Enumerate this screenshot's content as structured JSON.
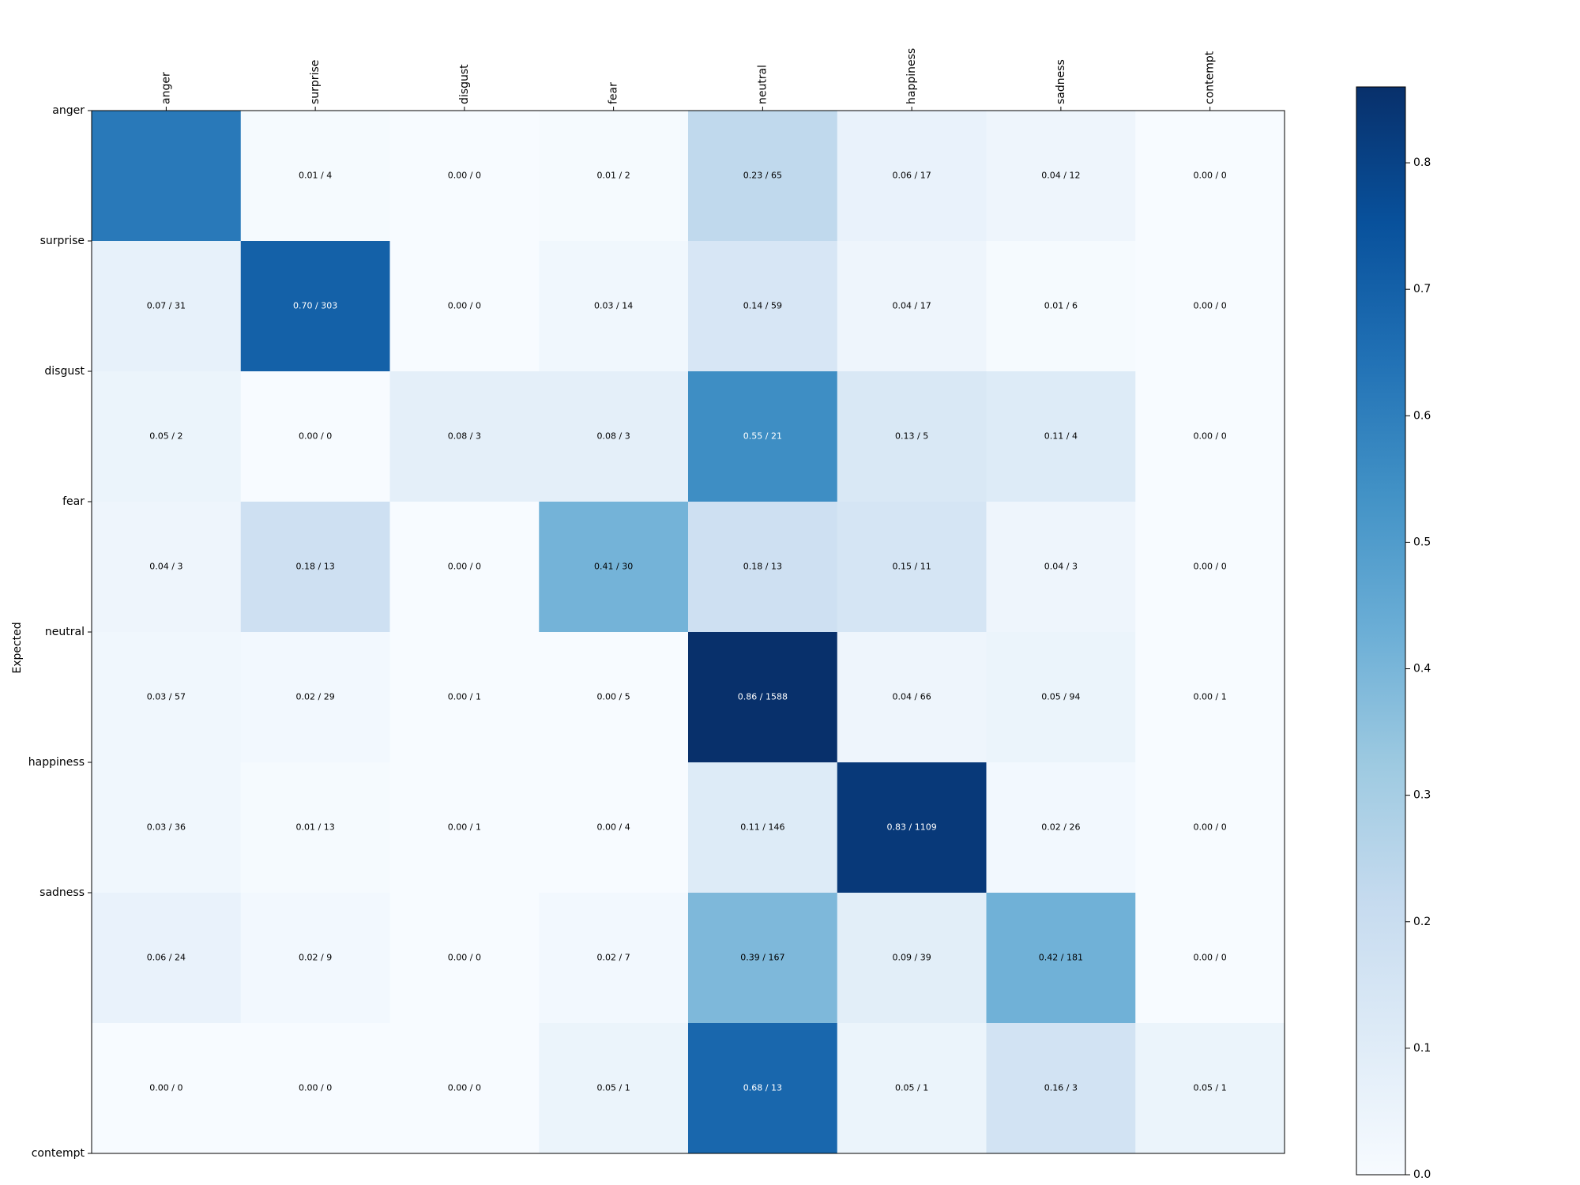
{
  "chart_data": {
    "type": "heatmap",
    "title": "",
    "xlabel": "",
    "ylabel": "Expected",
    "categories_x": [
      "anger",
      "surprise",
      "disgust",
      "fear",
      "neutral",
      "happiness",
      "sadness",
      "contempt"
    ],
    "categories_y": [
      "anger",
      "surprise",
      "disgust",
      "fear",
      "neutral",
      "happiness",
      "sadness",
      "contempt"
    ],
    "cells": [
      [
        "",
        "0.01 / 4",
        "0.00 / 0",
        "0.01 / 2",
        "0.23 / 65",
        "0.06 / 17",
        "0.04 / 12",
        "0.00 / 0"
      ],
      [
        "0.07 / 31",
        "0.70 / 303",
        "0.00 / 0",
        "0.03 / 14",
        "0.14 / 59",
        "0.04 / 17",
        "0.01 / 6",
        "0.00 / 0"
      ],
      [
        "0.05 / 2",
        "0.00 / 0",
        "0.08 / 3",
        "0.08 / 3",
        "0.55 / 21",
        "0.13 / 5",
        "0.11 / 4",
        "0.00 / 0"
      ],
      [
        "0.04 / 3",
        "0.18 / 13",
        "0.00 / 0",
        "0.41 / 30",
        "0.18 / 13",
        "0.15 / 11",
        "0.04 / 3",
        "0.00 / 0"
      ],
      [
        "0.03 / 57",
        "0.02 / 29",
        "0.00 / 1",
        "0.00 / 5",
        "0.86 / 1588",
        "0.04 / 66",
        "0.05 / 94",
        "0.00 / 1"
      ],
      [
        "0.03 / 36",
        "0.01 / 13",
        "0.00 / 1",
        "0.00 / 4",
        "0.11 / 146",
        "0.83 / 1109",
        "0.02 / 26",
        "0.00 / 0"
      ],
      [
        "0.06 / 24",
        "0.02 / 9",
        "0.00 / 0",
        "0.02 / 7",
        "0.39 / 167",
        "0.09 / 39",
        "0.42 / 181",
        "0.00 / 0"
      ],
      [
        "0.00 / 0",
        "0.00 / 0",
        "0.00 / 0",
        "0.05 / 1",
        "0.68 / 13",
        "0.05 / 1",
        "0.16 / 3",
        "0.05 / 1"
      ]
    ],
    "values": [
      [
        0.62,
        0.01,
        0.0,
        0.01,
        0.23,
        0.06,
        0.04,
        0.0
      ],
      [
        0.07,
        0.7,
        0.0,
        0.03,
        0.14,
        0.04,
        0.01,
        0.0
      ],
      [
        0.05,
        0.0,
        0.08,
        0.08,
        0.55,
        0.13,
        0.11,
        0.0
      ],
      [
        0.04,
        0.18,
        0.0,
        0.41,
        0.18,
        0.15,
        0.04,
        0.0
      ],
      [
        0.03,
        0.02,
        0.0,
        0.0,
        0.86,
        0.04,
        0.05,
        0.0
      ],
      [
        0.03,
        0.01,
        0.0,
        0.0,
        0.11,
        0.83,
        0.02,
        0.0
      ],
      [
        0.06,
        0.02,
        0.0,
        0.02,
        0.39,
        0.09,
        0.42,
        0.0
      ],
      [
        0.0,
        0.0,
        0.0,
        0.05,
        0.68,
        0.05,
        0.16,
        0.05
      ]
    ],
    "colormap": "Blues",
    "colorbar": {
      "range": [
        0,
        0.86
      ],
      "ticks": [
        0.0,
        0.1,
        0.2,
        0.3,
        0.4,
        0.5,
        0.6,
        0.7,
        0.8
      ],
      "tick_labels": [
        "0.0",
        "0.1",
        "0.2",
        "0.3",
        "0.4",
        "0.5",
        "0.6",
        "0.7",
        "0.8"
      ]
    },
    "grid": false,
    "x_tick_position": "top",
    "x_tick_rotation": "vertical"
  }
}
